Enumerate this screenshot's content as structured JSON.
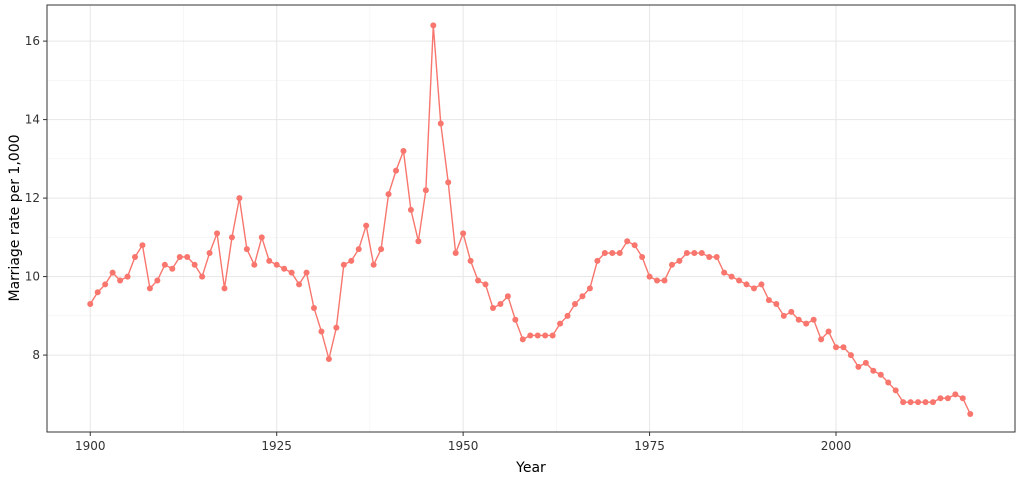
{
  "chart_data": {
    "type": "line",
    "xlabel": "Year",
    "ylabel": "Marriage rate per 1,000",
    "x": [
      1900,
      1901,
      1902,
      1903,
      1904,
      1905,
      1906,
      1907,
      1908,
      1909,
      1910,
      1911,
      1912,
      1913,
      1914,
      1915,
      1916,
      1917,
      1918,
      1919,
      1920,
      1921,
      1922,
      1923,
      1924,
      1925,
      1926,
      1927,
      1928,
      1929,
      1930,
      1931,
      1932,
      1933,
      1934,
      1935,
      1936,
      1937,
      1938,
      1939,
      1940,
      1941,
      1942,
      1943,
      1944,
      1945,
      1946,
      1947,
      1948,
      1949,
      1950,
      1951,
      1952,
      1953,
      1954,
      1955,
      1956,
      1957,
      1958,
      1959,
      1960,
      1961,
      1962,
      1963,
      1964,
      1965,
      1966,
      1967,
      1968,
      1969,
      1970,
      1971,
      1972,
      1973,
      1974,
      1975,
      1976,
      1977,
      1978,
      1979,
      1980,
      1981,
      1982,
      1983,
      1984,
      1985,
      1986,
      1987,
      1988,
      1989,
      1990,
      1991,
      1992,
      1993,
      1994,
      1995,
      1996,
      1997,
      1998,
      1999,
      2000,
      2001,
      2002,
      2003,
      2004,
      2005,
      2006,
      2007,
      2008,
      2009,
      2010,
      2011,
      2012,
      2013,
      2014,
      2015,
      2016,
      2017,
      2018
    ],
    "series": [
      {
        "color": "#F8766D",
        "values": [
          9.3,
          9.6,
          9.8,
          10.1,
          9.9,
          10.0,
          10.5,
          10.8,
          9.7,
          9.9,
          10.3,
          10.2,
          10.5,
          10.5,
          10.3,
          10.0,
          10.6,
          11.1,
          9.7,
          11.0,
          12.0,
          10.7,
          10.3,
          11.0,
          10.4,
          10.3,
          10.2,
          10.1,
          9.8,
          10.1,
          9.2,
          8.6,
          7.9,
          8.7,
          10.3,
          10.4,
          10.7,
          11.3,
          10.3,
          10.7,
          12.1,
          12.7,
          13.2,
          11.7,
          10.9,
          12.2,
          16.4,
          13.9,
          12.4,
          10.6,
          11.1,
          10.4,
          9.9,
          9.8,
          9.2,
          9.3,
          9.5,
          8.9,
          8.4,
          8.5,
          8.5,
          8.5,
          8.5,
          8.8,
          9.0,
          9.3,
          9.5,
          9.7,
          10.4,
          10.6,
          10.6,
          10.6,
          10.9,
          10.8,
          10.5,
          10.0,
          9.9,
          9.9,
          10.3,
          10.4,
          10.6,
          10.6,
          10.6,
          10.5,
          10.5,
          10.1,
          10.0,
          9.9,
          9.8,
          9.7,
          9.8,
          9.4,
          9.3,
          9.0,
          9.1,
          8.9,
          8.8,
          8.9,
          8.4,
          8.6,
          8.2,
          8.2,
          8.0,
          7.7,
          7.8,
          7.6,
          7.5,
          7.3,
          7.1,
          6.8,
          6.8,
          6.8,
          6.8,
          6.8,
          6.9,
          6.9,
          7.0,
          6.9,
          6.5
        ]
      }
    ],
    "xlim": [
      1894.2,
      2024.0
    ],
    "xticks": [
      1900,
      1925,
      1950,
      1975,
      2000
    ],
    "ylim": [
      6.04,
      16.92
    ],
    "yticks": [
      8,
      10,
      12,
      14,
      16
    ],
    "grid": true
  }
}
